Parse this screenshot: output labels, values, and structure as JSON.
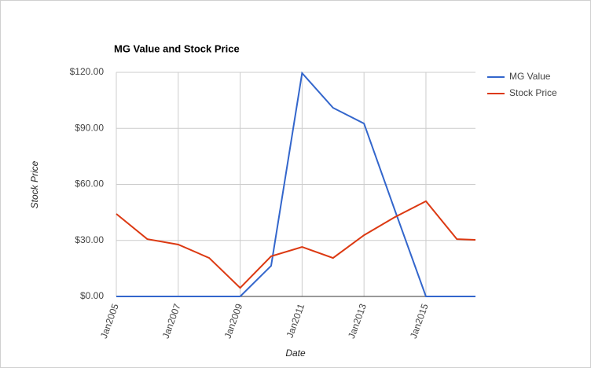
{
  "chart_data": {
    "type": "line",
    "title": "MG Value and Stock Price",
    "x_label": "Date",
    "y_label": "Stock Price",
    "x": [
      2005,
      2006,
      2007,
      2008,
      2009,
      2010,
      2011,
      2012,
      2013,
      2014,
      2015,
      2016,
      2016.6
    ],
    "series": [
      {
        "name": "MG Value",
        "color": "#3366cc",
        "values": [
          0,
          0,
          0,
          0,
          0,
          16.4,
          119.6,
          101,
          92.6,
          46,
          0,
          0,
          0
        ]
      },
      {
        "name": "Stock Price",
        "color": "#dc3912",
        "values": [
          44.2,
          30.7,
          27.8,
          20.6,
          4.6,
          21.5,
          26.5,
          20.6,
          32.8,
          42.5,
          51,
          30.7,
          30.3
        ]
      }
    ],
    "xlim": [
      2005,
      2016.6
    ],
    "xticks": [
      {
        "value": 2005,
        "label": "Jan2005"
      },
      {
        "value": 2007,
        "label": "Jan2007"
      },
      {
        "value": 2009,
        "label": "Jan2009"
      },
      {
        "value": 2011,
        "label": "Jan2011"
      },
      {
        "value": 2013,
        "label": "Jan2013"
      },
      {
        "value": 2015,
        "label": "Jan2015"
      }
    ],
    "ylim": [
      0,
      120
    ],
    "yticks": [
      {
        "value": 0,
        "label": "$0.00"
      },
      {
        "value": 30,
        "label": "$30.00"
      },
      {
        "value": 60,
        "label": "$60.00"
      },
      {
        "value": 90,
        "label": "$90.00"
      },
      {
        "value": 120,
        "label": "$120.00"
      }
    ],
    "grid": true,
    "legend": "right"
  }
}
